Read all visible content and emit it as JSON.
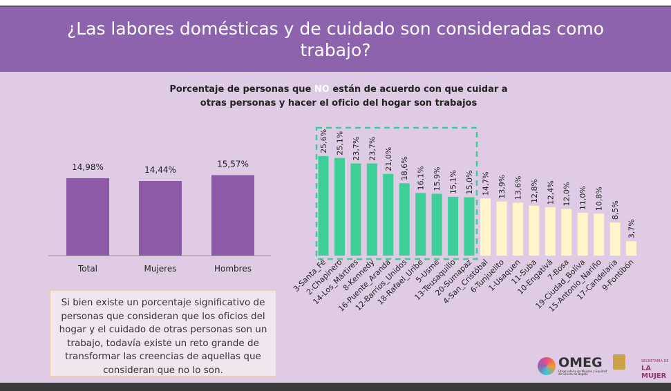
{
  "header": {
    "title": "¿Las labores domésticas y de cuidado son consideradas como trabajo?"
  },
  "subtitle": {
    "before": "Porcentaje de personas que",
    "highlight": "NO",
    "after": "están de acuerdo con que cuidar a",
    "line2": "otras personas y hacer el oficio del hogar son trabajos"
  },
  "chart_data": [
    {
      "type": "bar",
      "categories": [
        "Total",
        "Mujeres",
        "Hombres"
      ],
      "values": [
        14.98,
        14.44,
        15.57
      ],
      "value_labels": [
        "14,98%",
        "14,44%",
        "15,57%"
      ],
      "colors": [
        "#8c5aa6",
        "#8c5aa6",
        "#8c5aa6"
      ]
    },
    {
      "type": "bar",
      "categories": [
        "3-Santa_Fé",
        "2-Chapinero",
        "14-Los_Mártires",
        "8-Kennedy",
        "16-Puente_Aranda",
        "12-Barrios_Unidos",
        "18-Rafael_Uribe",
        "5-Usme",
        "13-Teusaquillo",
        "20-Sumapaz",
        "4-San_Cristóbal",
        "6-Tunjuelito",
        "1-Usaquen",
        "11-Suba",
        "10-Engativá",
        "7-Bosa",
        "19-Ciudad_Bolíva",
        "15-Antonio_Nariño",
        "17-Candelaria",
        "9-Fontibón"
      ],
      "values": [
        25.6,
        25.1,
        23.7,
        23.7,
        21.0,
        18.6,
        16.1,
        15.9,
        15.1,
        15.0,
        14.7,
        13.9,
        13.6,
        12.8,
        12.4,
        12.0,
        11.0,
        10.8,
        8.5,
        3.7
      ],
      "value_labels": [
        "25,6%",
        "25,1%",
        "23,7%",
        "23,7%",
        "21,0%",
        "18,6%",
        "16,1%",
        "15,9%",
        "15,1%",
        "15,0%",
        "14,7%",
        "13,9%",
        "13,6%",
        "12,8%",
        "12,4%",
        "12,0%",
        "11,0%",
        "10,8%",
        "8,5%",
        "3,7%"
      ],
      "colors": [
        "#3ecf98",
        "#3ecf98",
        "#3ecf98",
        "#3ecf98",
        "#3ecf98",
        "#3ecf98",
        "#3ecf98",
        "#3ecf98",
        "#3ecf98",
        "#3ecf98",
        "#fff5c8",
        "#fff5c8",
        "#fff5c8",
        "#fff5c8",
        "#fff5c8",
        "#fff5c8",
        "#fff5c8",
        "#fff5c8",
        "#fff5c8",
        "#fff5c8"
      ]
    }
  ],
  "note": "Si bien existe un porcentaje significativo de personas que consideran que los oficios del hogar y el cuidado de otras personas son un trabajo, todavía existe un reto grande de transformar las creencias de aquellas que consideran que no lo son.",
  "logos": {
    "omeg": "OMEG",
    "omeg_sub": "Observatorio de Mujeres y Equidad de Género de Bogotá",
    "secretaria": "SECRETARÍA DE",
    "mujer": "LA MUJER"
  }
}
